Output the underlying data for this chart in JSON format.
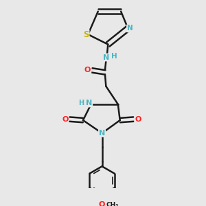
{
  "bg_color": "#e8e8e8",
  "bond_color": "#1a1a1a",
  "bond_width": 1.8,
  "atom_colors": {
    "N": "#4ab5c4",
    "O": "#ff2020",
    "S": "#c8b400",
    "C": "#1a1a1a",
    "H": "#4ab5c4"
  },
  "font_size": 8.5,
  "title": ""
}
